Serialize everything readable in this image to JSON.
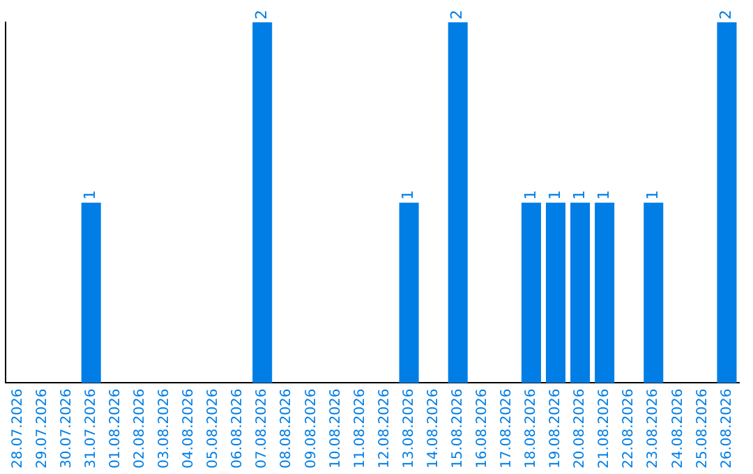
{
  "chart_data": {
    "type": "bar",
    "categories": [
      "28.07.2026",
      "29.07.2026",
      "30.07.2026",
      "31.07.2026",
      "01.08.2026",
      "02.08.2026",
      "03.08.2026",
      "04.08.2026",
      "05.08.2026",
      "06.08.2026",
      "07.08.2026",
      "08.08.2026",
      "09.08.2026",
      "10.08.2026",
      "11.08.2026",
      "12.08.2026",
      "13.08.2026",
      "14.08.2026",
      "15.08.2026",
      "16.08.2026",
      "17.08.2026",
      "18.08.2026",
      "19.08.2026",
      "20.08.2026",
      "21.08.2026",
      "22.08.2026",
      "23.08.2026",
      "24.08.2026",
      "25.08.2026",
      "26.08.2026"
    ],
    "values": [
      0,
      0,
      0,
      1,
      0,
      0,
      0,
      0,
      0,
      0,
      2,
      0,
      0,
      0,
      0,
      0,
      1,
      0,
      2,
      0,
      0,
      1,
      1,
      1,
      1,
      0,
      1,
      0,
      0,
      2
    ],
    "value_labels": [
      null,
      null,
      null,
      "1",
      null,
      null,
      null,
      null,
      null,
      null,
      "2",
      null,
      null,
      null,
      null,
      null,
      "1",
      null,
      "2",
      null,
      null,
      "1",
      "1",
      "1",
      "1",
      null,
      "1",
      null,
      null,
      "2"
    ],
    "color": "#007ee5",
    "grid": false,
    "legend": false,
    "tick_labels": "x"
  }
}
